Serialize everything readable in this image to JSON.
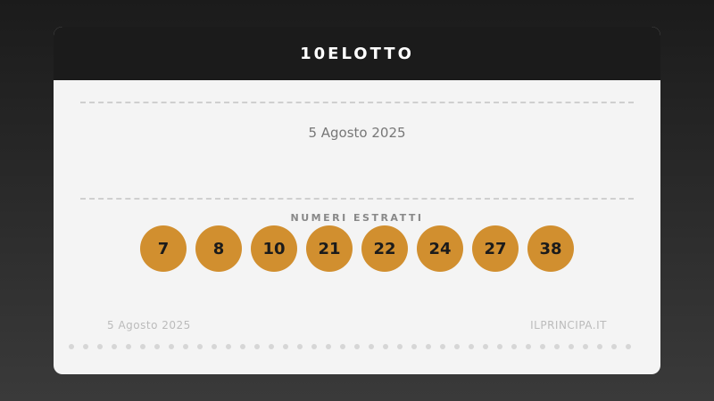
{
  "title": "10ELOTTO",
  "date": "5 Agosto 2025",
  "numbers_label": "NUMERI ESTRATTI",
  "numbers": [
    "7",
    "8",
    "10",
    "21",
    "22",
    "24",
    "27",
    "38"
  ],
  "footer": {
    "date": "5 Agosto 2025",
    "site": "ILPRINCIPA.IT"
  },
  "colors": {
    "ball": "#d18f2f",
    "header": "#1b1b1b"
  }
}
